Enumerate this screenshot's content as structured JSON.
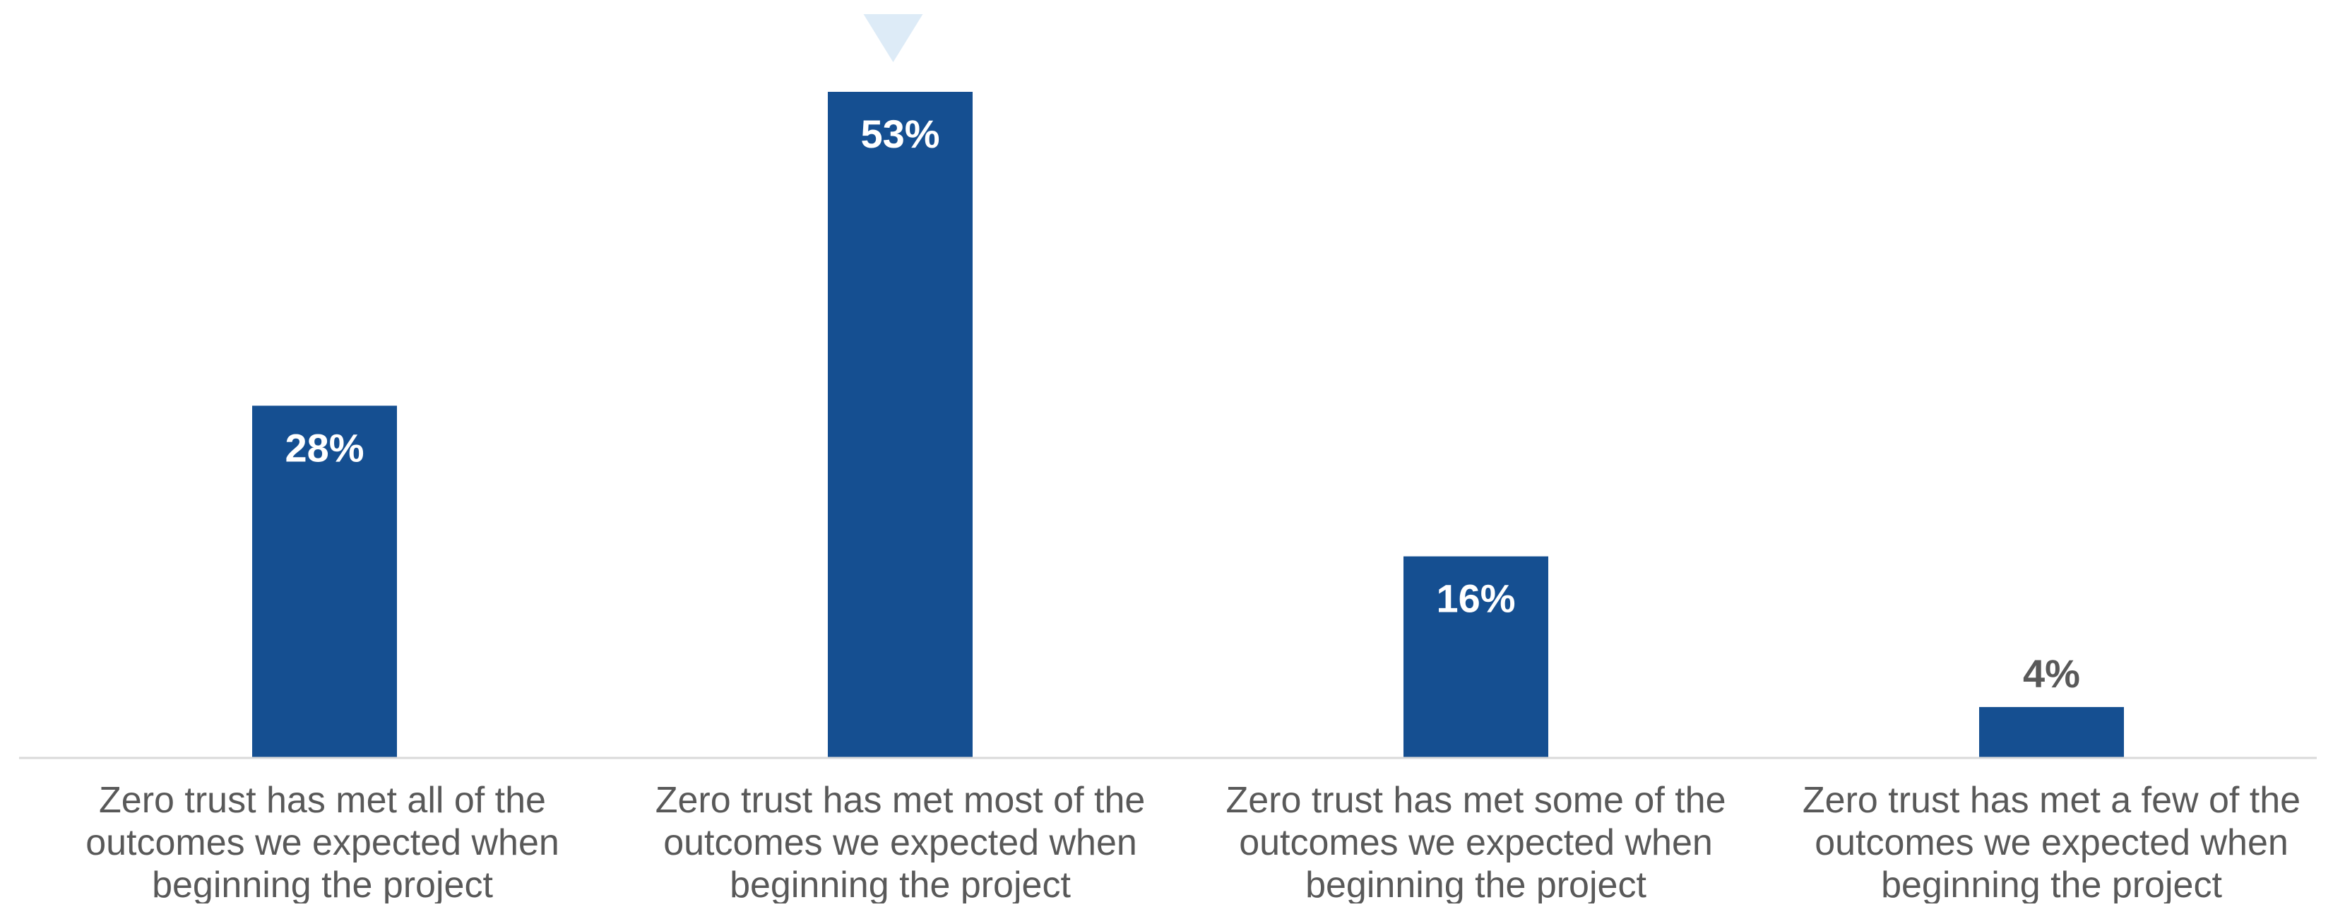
{
  "chart_data": {
    "type": "bar",
    "title": "",
    "xlabel": "",
    "ylabel": "",
    "ylim": [
      0,
      58
    ],
    "grid": false,
    "legend": "none",
    "categories": [
      "Zero trust has met all of the outcomes we expected when beginning the project",
      "Zero trust has met most of the outcomes we expected when beginning the project",
      "Zero trust has met some of the outcomes we expected when beginning the project",
      "Zero trust has met a few of the outcomes we expected when beginning the project"
    ],
    "category_lines": [
      [
        "Zero trust has met all of the",
        "outcomes we expected when",
        "beginning the project"
      ],
      [
        "Zero trust has met most of the",
        "outcomes we expected when",
        "beginning the project"
      ],
      [
        "Zero trust has met some of the",
        "outcomes we expected when",
        "beginning the project"
      ],
      [
        "Zero trust has met a few of the",
        "outcomes we expected when",
        "beginning the project"
      ]
    ],
    "values": [
      28,
      53,
      16,
      4
    ],
    "data_labels": [
      "28%",
      "53%",
      "16%",
      "4%"
    ],
    "highlight_index": 1
  },
  "colors": {
    "bar": "#154f91",
    "axis": "#d9d9d9",
    "label_text": "#595959",
    "marker": "#ddebf7"
  }
}
